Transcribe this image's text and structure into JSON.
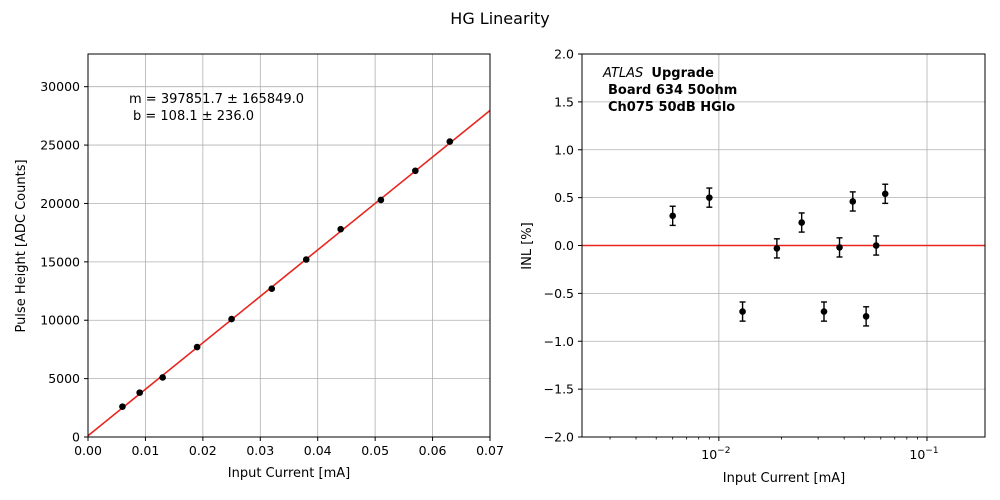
{
  "figure_title": "HG Linearity",
  "chart_data": [
    {
      "type": "scatter",
      "xlabel": "Input Current [mA]",
      "ylabel": "Pulse Height [ADC Counts]",
      "xlim": [
        0,
        0.07
      ],
      "ylim": [
        0,
        32800
      ],
      "xticks": [
        0.0,
        0.01,
        0.02,
        0.03,
        0.04,
        0.05,
        0.06,
        0.07
      ],
      "xtick_labels": [
        "0.00",
        "0.01",
        "0.02",
        "0.03",
        "0.04",
        "0.05",
        "0.06",
        "0.07"
      ],
      "yticks": [
        0,
        5000,
        10000,
        15000,
        20000,
        25000,
        30000
      ],
      "ytick_labels": [
        "0",
        "5000",
        "10000",
        "15000",
        "20000",
        "25000",
        "30000"
      ],
      "grid": true,
      "fit_line": {
        "slope": 397851.7,
        "intercept": 108.1,
        "color": "#e8251f"
      },
      "annotation_lines": [
        "m = 397851.7 ± 165849.0",
        "b = 108.1 ± 236.0"
      ],
      "series": [
        {
          "color": "#000000",
          "x": [
            0.006,
            0.009,
            0.013,
            0.019,
            0.025,
            0.032,
            0.038,
            0.044,
            0.051,
            0.057,
            0.063
          ],
          "y": [
            2600,
            3800,
            5100,
            7700,
            10100,
            12700,
            15200,
            17800,
            20300,
            22800,
            25300
          ]
        }
      ]
    },
    {
      "type": "scatter",
      "xlabel": "Input Current [mA]",
      "ylabel": "INL [%]",
      "xscale": "log",
      "xlim": [
        0.0022,
        0.19
      ],
      "ylim": [
        -2.0,
        2.0
      ],
      "xticks": [
        0.01,
        0.1
      ],
      "xtick_labels": [
        "10",
        "10"
      ],
      "xtick_exponents": [
        "−2",
        "−1"
      ],
      "yticks": [
        -2.0,
        -1.5,
        -1.0,
        -0.5,
        0.0,
        0.5,
        1.0,
        1.5,
        2.0
      ],
      "ytick_labels": [
        "−2.0",
        "−1.5",
        "−1.0",
        "−0.5",
        "0.0",
        "0.5",
        "1.0",
        "1.5",
        "2.0"
      ],
      "grid": true,
      "zero_line_color": "#e8251f",
      "annotation_italic": "ATLAS",
      "annotation_bold": "Upgrade",
      "annotation_lines": [
        "Board 634 50ohm",
        "Ch075 50dB HGlo"
      ],
      "series": [
        {
          "color": "#000000",
          "x": [
            0.006,
            0.009,
            0.013,
            0.019,
            0.025,
            0.032,
            0.038,
            0.044,
            0.051,
            0.057,
            0.063
          ],
          "y": [
            0.31,
            0.5,
            -0.69,
            -0.03,
            0.24,
            -0.69,
            -0.02,
            0.46,
            -0.74,
            0.0,
            0.54
          ],
          "yerr": [
            0.1,
            0.1,
            0.1,
            0.1,
            0.1,
            0.1,
            0.1,
            0.1,
            0.1,
            0.1,
            0.1
          ]
        }
      ]
    }
  ]
}
